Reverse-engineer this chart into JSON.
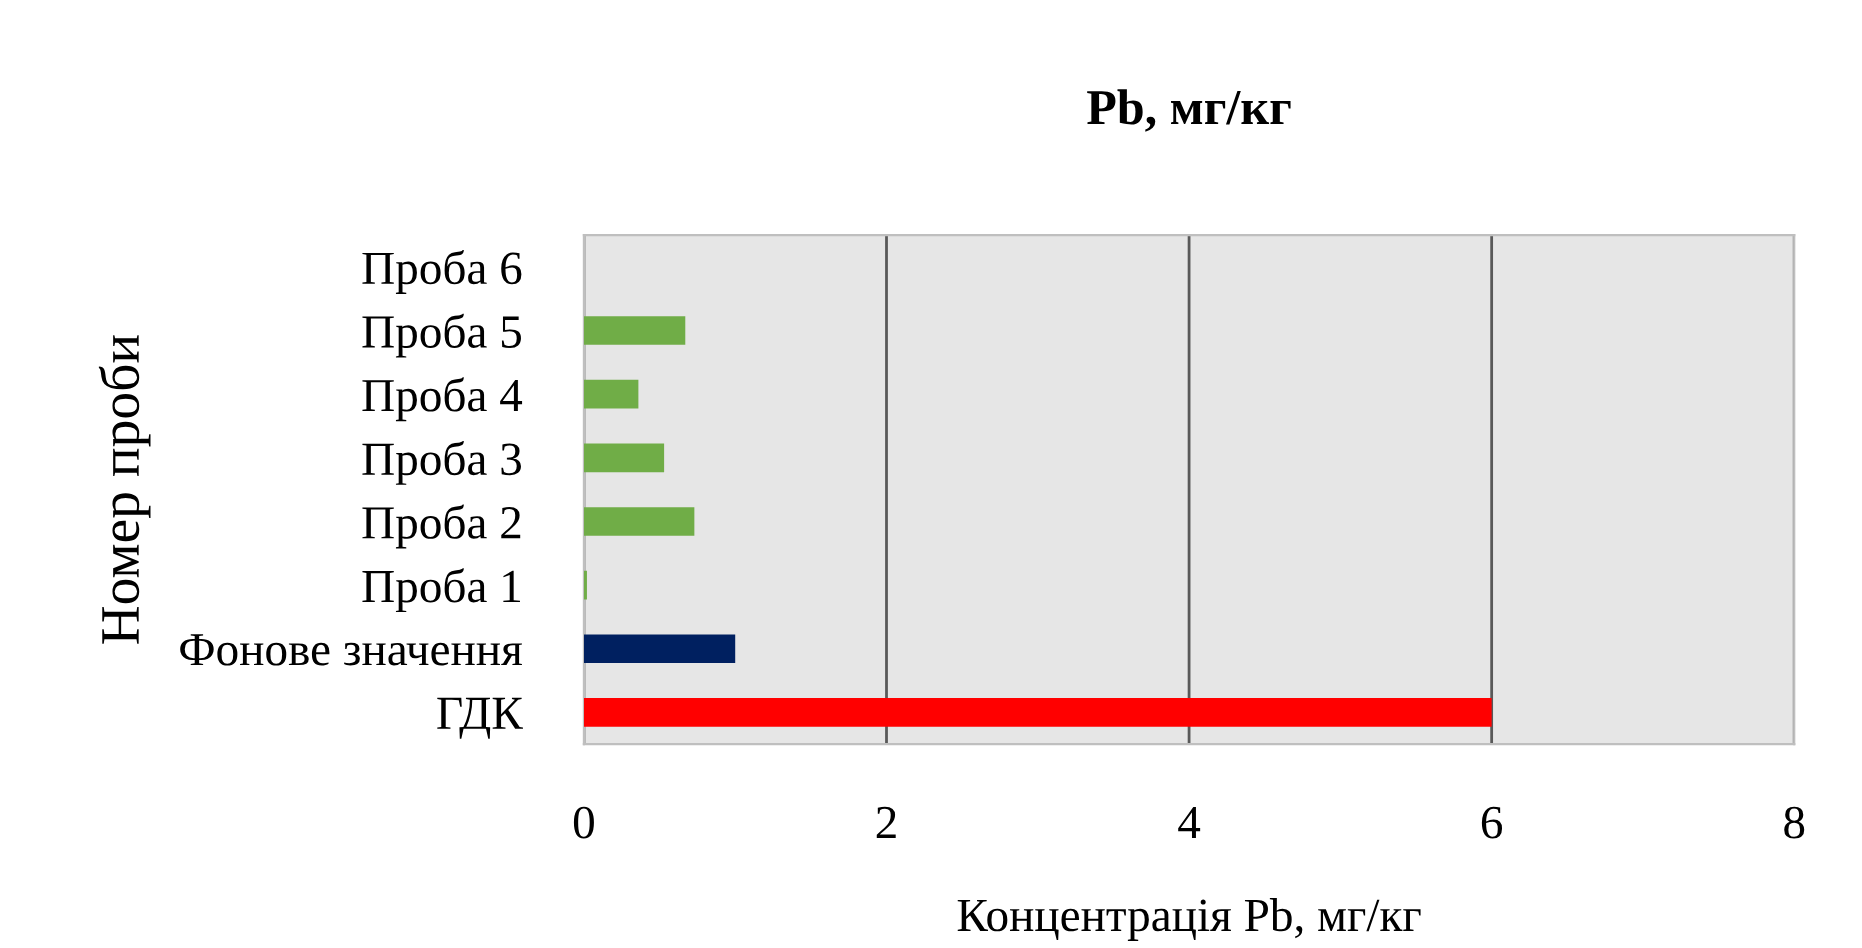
{
  "chart_data": {
    "type": "bar",
    "orientation": "horizontal",
    "title": "Pb, мг/кг",
    "xlabel": "Концентрація Pb, мг/кг",
    "ylabel": "Номер проби",
    "categories": [
      "Проба 6",
      "Проба 5",
      "Проба 4",
      "Проба 3",
      "Проба 2",
      "Проба 1",
      "Фонове значення",
      "ГДК"
    ],
    "values": [
      0,
      0.67,
      0.36,
      0.53,
      0.73,
      0.02,
      1.0,
      6.0
    ],
    "colors": [
      "#70ad47",
      "#70ad47",
      "#70ad47",
      "#70ad47",
      "#70ad47",
      "#70ad47",
      "#002060",
      "#ff0000"
    ],
    "xlim": [
      0,
      8
    ],
    "xticks": [
      0,
      2,
      4,
      6,
      8
    ],
    "grid": "x",
    "legend": false
  }
}
